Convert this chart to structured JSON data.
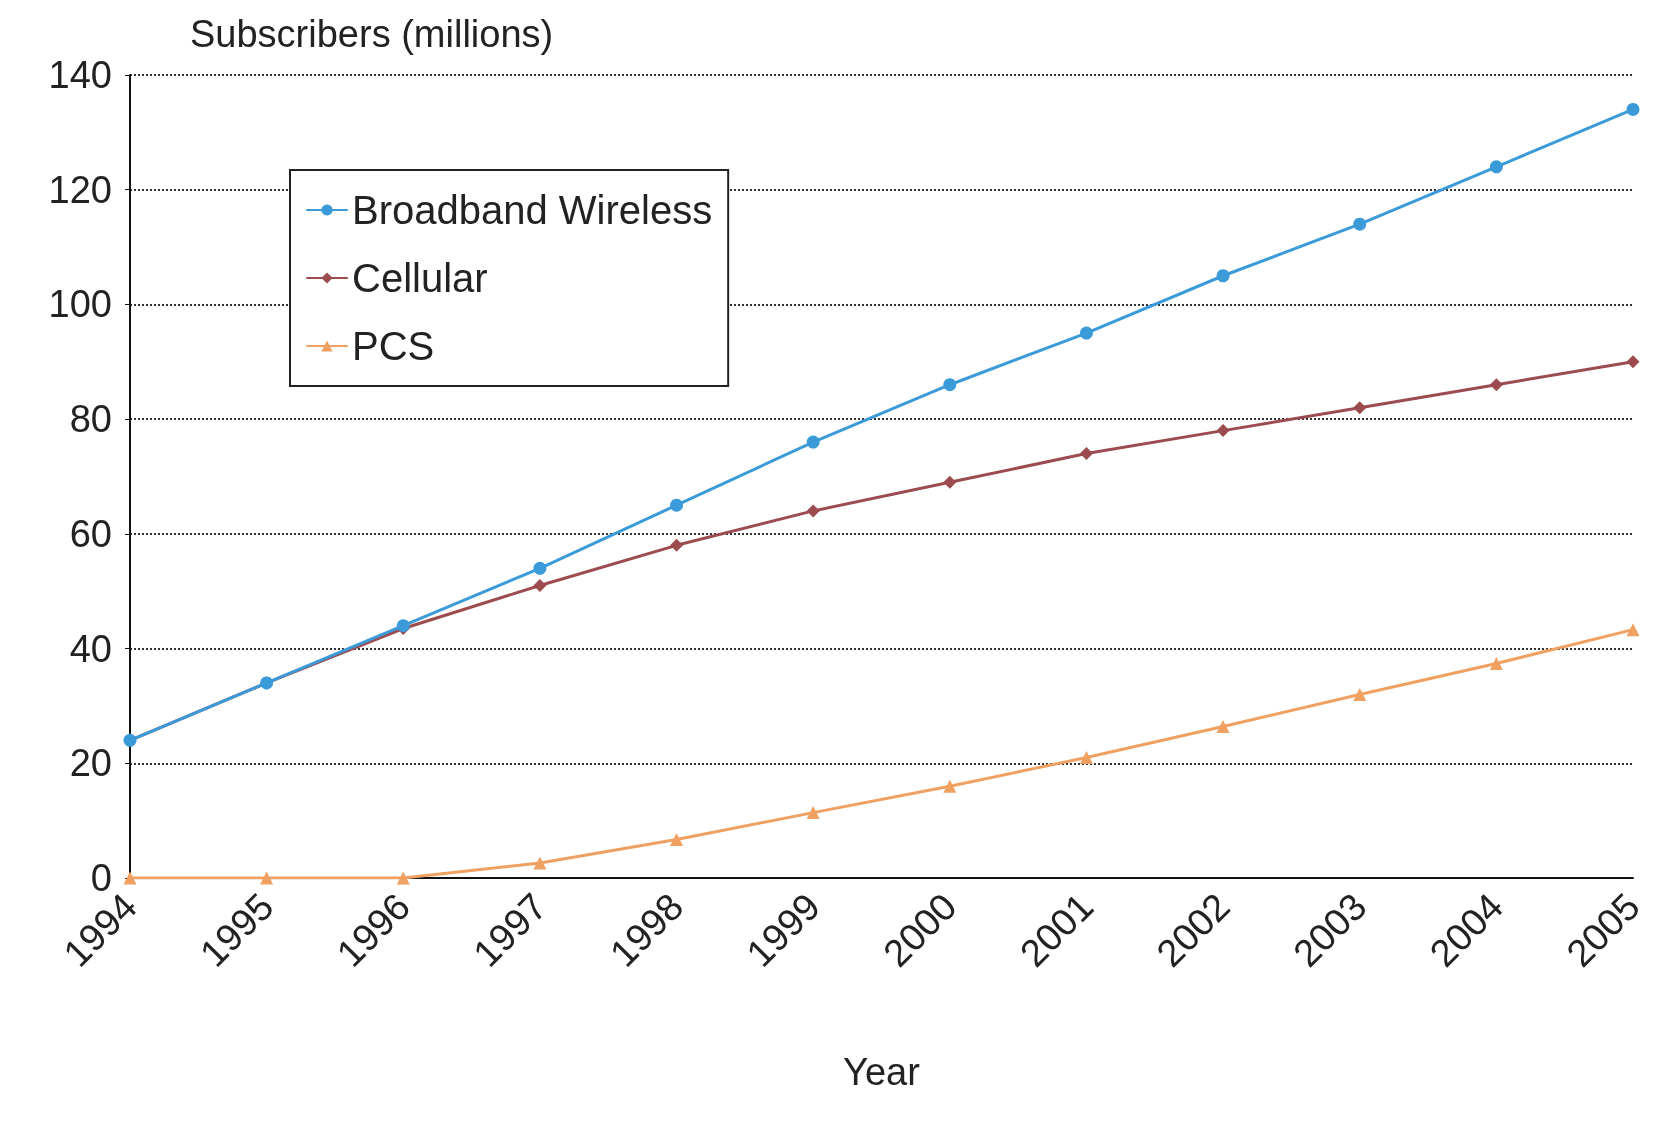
{
  "chart_data": {
    "type": "line",
    "ylabel": "Subscribers (millions)",
    "xlabel": "Year",
    "categories": [
      "1994",
      "1995",
      "1996",
      "1997",
      "1998",
      "1999",
      "2000",
      "2001",
      "2002",
      "2003",
      "2004",
      "2005"
    ],
    "series": [
      {
        "name": "Broadband Wireless",
        "color": "#3b9bd9",
        "marker": "circle",
        "values": [
          24,
          34,
          44,
          54,
          65,
          76,
          86,
          95,
          105,
          114,
          124,
          134
        ]
      },
      {
        "name": "Cellular",
        "color": "#9c4b4e",
        "marker": "diamond",
        "values": [
          24,
          34,
          43.5,
          51,
          58,
          64,
          69,
          74,
          78,
          82,
          86,
          90
        ]
      },
      {
        "name": "PCS",
        "color": "#f0a060",
        "marker": "triangle",
        "values": [
          0,
          0,
          0,
          2.6,
          6.7,
          11.4,
          16,
          21,
          26.4,
          32,
          37.4,
          43.3
        ]
      }
    ],
    "ylim": [
      0,
      140
    ],
    "yticks": [
      0,
      20,
      40,
      60,
      80,
      100,
      120,
      140
    ],
    "grid": "y",
    "legend": "top left",
    "line_style": "solid"
  }
}
